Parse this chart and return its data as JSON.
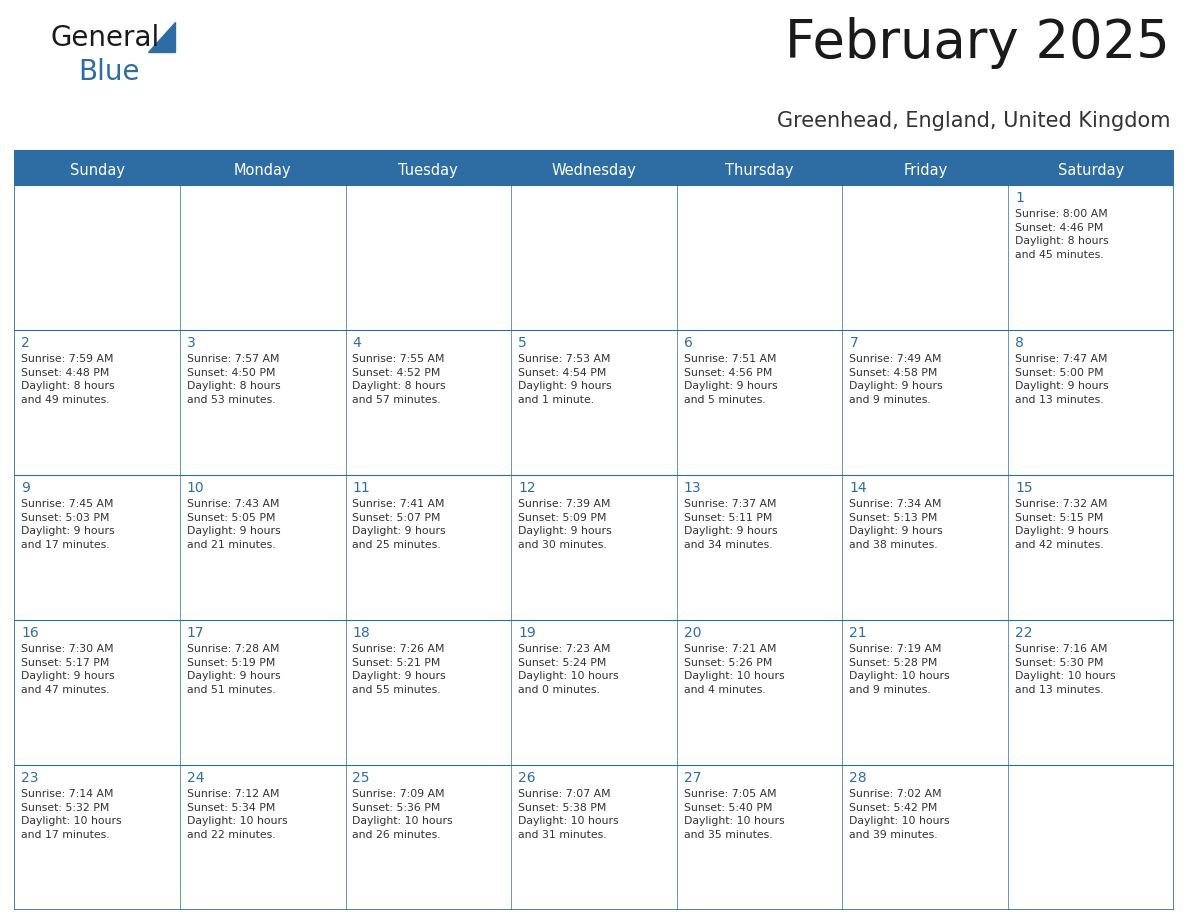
{
  "title": "February 2025",
  "subtitle": "Greenhead, England, United Kingdom",
  "header_bg": "#2E6DA4",
  "header_text_color": "#FFFFFF",
  "cell_bg": "#FFFFFF",
  "border_color": "#2E6DA4",
  "day_names": [
    "Sunday",
    "Monday",
    "Tuesday",
    "Wednesday",
    "Thursday",
    "Friday",
    "Saturday"
  ],
  "title_color": "#1a1a1a",
  "subtitle_color": "#333333",
  "cell_text_color": "#333333",
  "day_num_color": "#2E6DA4",
  "weeks": [
    [
      {
        "day": 0,
        "text": ""
      },
      {
        "day": 0,
        "text": ""
      },
      {
        "day": 0,
        "text": ""
      },
      {
        "day": 0,
        "text": ""
      },
      {
        "day": 0,
        "text": ""
      },
      {
        "day": 0,
        "text": ""
      },
      {
        "day": 1,
        "text": "Sunrise: 8:00 AM\nSunset: 4:46 PM\nDaylight: 8 hours\nand 45 minutes."
      }
    ],
    [
      {
        "day": 2,
        "text": "Sunrise: 7:59 AM\nSunset: 4:48 PM\nDaylight: 8 hours\nand 49 minutes."
      },
      {
        "day": 3,
        "text": "Sunrise: 7:57 AM\nSunset: 4:50 PM\nDaylight: 8 hours\nand 53 minutes."
      },
      {
        "day": 4,
        "text": "Sunrise: 7:55 AM\nSunset: 4:52 PM\nDaylight: 8 hours\nand 57 minutes."
      },
      {
        "day": 5,
        "text": "Sunrise: 7:53 AM\nSunset: 4:54 PM\nDaylight: 9 hours\nand 1 minute."
      },
      {
        "day": 6,
        "text": "Sunrise: 7:51 AM\nSunset: 4:56 PM\nDaylight: 9 hours\nand 5 minutes."
      },
      {
        "day": 7,
        "text": "Sunrise: 7:49 AM\nSunset: 4:58 PM\nDaylight: 9 hours\nand 9 minutes."
      },
      {
        "day": 8,
        "text": "Sunrise: 7:47 AM\nSunset: 5:00 PM\nDaylight: 9 hours\nand 13 minutes."
      }
    ],
    [
      {
        "day": 9,
        "text": "Sunrise: 7:45 AM\nSunset: 5:03 PM\nDaylight: 9 hours\nand 17 minutes."
      },
      {
        "day": 10,
        "text": "Sunrise: 7:43 AM\nSunset: 5:05 PM\nDaylight: 9 hours\nand 21 minutes."
      },
      {
        "day": 11,
        "text": "Sunrise: 7:41 AM\nSunset: 5:07 PM\nDaylight: 9 hours\nand 25 minutes."
      },
      {
        "day": 12,
        "text": "Sunrise: 7:39 AM\nSunset: 5:09 PM\nDaylight: 9 hours\nand 30 minutes."
      },
      {
        "day": 13,
        "text": "Sunrise: 7:37 AM\nSunset: 5:11 PM\nDaylight: 9 hours\nand 34 minutes."
      },
      {
        "day": 14,
        "text": "Sunrise: 7:34 AM\nSunset: 5:13 PM\nDaylight: 9 hours\nand 38 minutes."
      },
      {
        "day": 15,
        "text": "Sunrise: 7:32 AM\nSunset: 5:15 PM\nDaylight: 9 hours\nand 42 minutes."
      }
    ],
    [
      {
        "day": 16,
        "text": "Sunrise: 7:30 AM\nSunset: 5:17 PM\nDaylight: 9 hours\nand 47 minutes."
      },
      {
        "day": 17,
        "text": "Sunrise: 7:28 AM\nSunset: 5:19 PM\nDaylight: 9 hours\nand 51 minutes."
      },
      {
        "day": 18,
        "text": "Sunrise: 7:26 AM\nSunset: 5:21 PM\nDaylight: 9 hours\nand 55 minutes."
      },
      {
        "day": 19,
        "text": "Sunrise: 7:23 AM\nSunset: 5:24 PM\nDaylight: 10 hours\nand 0 minutes."
      },
      {
        "day": 20,
        "text": "Sunrise: 7:21 AM\nSunset: 5:26 PM\nDaylight: 10 hours\nand 4 minutes."
      },
      {
        "day": 21,
        "text": "Sunrise: 7:19 AM\nSunset: 5:28 PM\nDaylight: 10 hours\nand 9 minutes."
      },
      {
        "day": 22,
        "text": "Sunrise: 7:16 AM\nSunset: 5:30 PM\nDaylight: 10 hours\nand 13 minutes."
      }
    ],
    [
      {
        "day": 23,
        "text": "Sunrise: 7:14 AM\nSunset: 5:32 PM\nDaylight: 10 hours\nand 17 minutes."
      },
      {
        "day": 24,
        "text": "Sunrise: 7:12 AM\nSunset: 5:34 PM\nDaylight: 10 hours\nand 22 minutes."
      },
      {
        "day": 25,
        "text": "Sunrise: 7:09 AM\nSunset: 5:36 PM\nDaylight: 10 hours\nand 26 minutes."
      },
      {
        "day": 26,
        "text": "Sunrise: 7:07 AM\nSunset: 5:38 PM\nDaylight: 10 hours\nand 31 minutes."
      },
      {
        "day": 27,
        "text": "Sunrise: 7:05 AM\nSunset: 5:40 PM\nDaylight: 10 hours\nand 35 minutes."
      },
      {
        "day": 28,
        "text": "Sunrise: 7:02 AM\nSunset: 5:42 PM\nDaylight: 10 hours\nand 39 minutes."
      },
      {
        "day": 0,
        "text": ""
      }
    ]
  ],
  "logo_general_color": "#1a1a1a",
  "logo_blue_color": "#2E6DA4",
  "figsize": [
    11.88,
    9.18
  ],
  "dpi": 100
}
